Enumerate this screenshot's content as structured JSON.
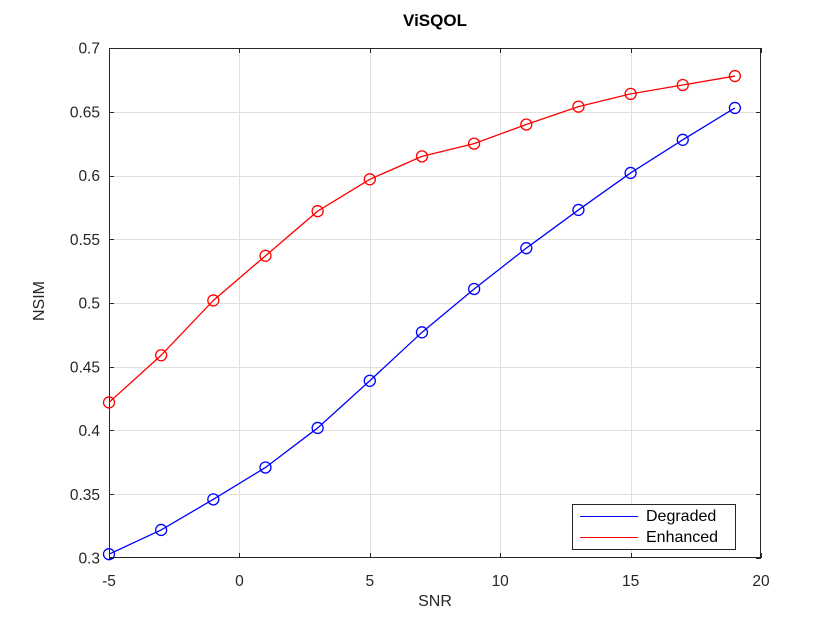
{
  "figure": {
    "background": "#ffffff"
  },
  "chart_data": {
    "type": "line",
    "title": "ViSQOL",
    "xlabel": "SNR",
    "ylabel": "NSIM",
    "x": [
      -5,
      -3,
      -1,
      1,
      3,
      5,
      7,
      9,
      11,
      13,
      15,
      17,
      19
    ],
    "series": [
      {
        "name": "Degraded",
        "color": "#0000ff",
        "marker": "circle",
        "values": [
          0.303,
          0.322,
          0.346,
          0.371,
          0.402,
          0.439,
          0.477,
          0.511,
          0.543,
          0.573,
          0.602,
          0.628,
          0.653
        ]
      },
      {
        "name": "Enhanced",
        "color": "#ff0000",
        "marker": "circle",
        "values": [
          0.422,
          0.459,
          0.502,
          0.537,
          0.572,
          0.597,
          0.615,
          0.625,
          0.64,
          0.654,
          0.664,
          0.671,
          0.678
        ]
      }
    ],
    "xlim": [
      -5,
      20
    ],
    "ylim": [
      0.3,
      0.7
    ],
    "xticks": [
      -5,
      0,
      5,
      10,
      15,
      20
    ],
    "yticks": [
      0.3,
      0.35,
      0.4,
      0.45,
      0.5,
      0.55,
      0.6,
      0.65,
      0.7
    ],
    "grid": true,
    "legend_position": "southeast",
    "axis_color": "#262626",
    "grid_color": "#e0e0e0",
    "tick_label_color": "#262626"
  }
}
